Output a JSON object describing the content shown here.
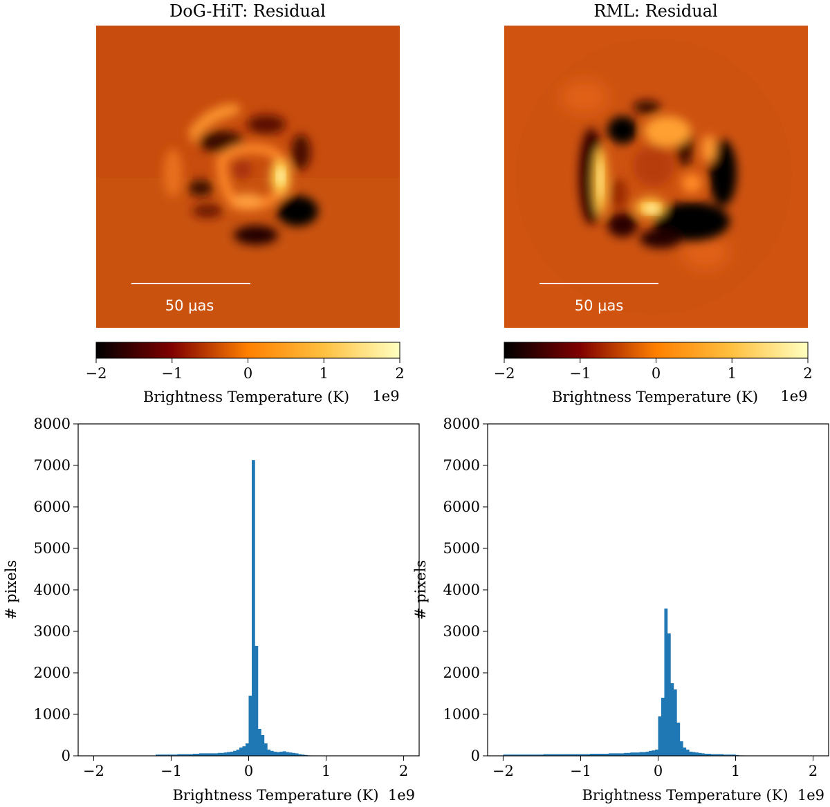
{
  "colors": {
    "bar": "#1f77b4",
    "frame": "#000000",
    "background": "#c64b0f",
    "scalebar": "#ffffff"
  },
  "chart_data": [
    {
      "type": "heatmap",
      "title": "DoG-HiT: Residual",
      "colormap": "afmhot",
      "scalebar_label": "50 μas",
      "colorbar": {
        "label": "Brightness Temperature (K)",
        "offset_label": "1e9",
        "range": [
          -2,
          2
        ],
        "ticks": [
          -2,
          -1,
          0,
          1,
          2
        ],
        "tick_labels": [
          "−2",
          "−1",
          "0",
          "1",
          "2"
        ]
      }
    },
    {
      "type": "heatmap",
      "title": "RML: Residual",
      "colormap": "afmhot",
      "scalebar_label": "50 μas",
      "colorbar": {
        "label": "Brightness Temperature (K)",
        "offset_label": "1e9",
        "range": [
          -2,
          2
        ],
        "ticks": [
          -2,
          -1,
          0,
          1,
          2
        ],
        "tick_labels": [
          "−2",
          "−1",
          "0",
          "1",
          "2"
        ]
      }
    },
    {
      "type": "bar",
      "subtype": "histogram",
      "xlabel": "Brightness Temperature (K)",
      "ylabel": "# pixels",
      "x_offset_label": "1e9",
      "xlim": [
        -2.2,
        2.2
      ],
      "ylim": [
        0,
        8000
      ],
      "xticks": [
        -2,
        -1,
        0,
        1,
        2
      ],
      "xtick_labels": [
        "−2",
        "−1",
        "0",
        "1",
        "2"
      ],
      "yticks": [
        0,
        1000,
        2000,
        3000,
        4000,
        5000,
        6000,
        7000,
        8000
      ],
      "ytick_labels": [
        "0",
        "1000",
        "2000",
        "3000",
        "4000",
        "5000",
        "6000",
        "7000",
        "8000"
      ],
      "bin_width": 0.04,
      "bin_start": -1.2,
      "values": [
        30,
        30,
        30,
        30,
        30,
        30,
        30,
        40,
        40,
        40,
        40,
        40,
        50,
        50,
        60,
        60,
        60,
        60,
        60,
        60,
        70,
        70,
        80,
        90,
        100,
        120,
        150,
        200,
        230,
        300,
        1450,
        7130,
        2650,
        650,
        500,
        300,
        150,
        120,
        100,
        90,
        100,
        110,
        90,
        80,
        70,
        60,
        40,
        30,
        20,
        10,
        5
      ]
    },
    {
      "type": "bar",
      "subtype": "histogram",
      "xlabel": "Brightness Temperature (K)",
      "ylabel": "# pixels",
      "x_offset_label": "1e9",
      "xlim": [
        -2.2,
        2.2
      ],
      "ylim": [
        0,
        8000
      ],
      "xticks": [
        -2,
        -1,
        0,
        1,
        2
      ],
      "xtick_labels": [
        "−2",
        "−1",
        "0",
        "1",
        "2"
      ],
      "yticks": [
        0,
        1000,
        2000,
        3000,
        4000,
        5000,
        6000,
        7000,
        8000
      ],
      "ytick_labels": [
        "0",
        "1000",
        "2000",
        "3000",
        "4000",
        "5000",
        "6000",
        "7000",
        "8000"
      ],
      "bin_width": 0.04,
      "bin_start": -2.0,
      "values": [
        30,
        30,
        30,
        30,
        30,
        30,
        30,
        30,
        30,
        30,
        30,
        30,
        30,
        40,
        40,
        40,
        40,
        40,
        40,
        40,
        40,
        40,
        40,
        40,
        40,
        40,
        40,
        40,
        50,
        50,
        50,
        50,
        50,
        50,
        60,
        60,
        60,
        60,
        60,
        70,
        70,
        80,
        80,
        80,
        90,
        90,
        100,
        120,
        130,
        150,
        950,
        1400,
        3550,
        2950,
        1750,
        1600,
        800,
        350,
        200,
        150,
        100,
        90,
        80,
        70,
        60,
        50,
        50,
        40,
        40,
        40,
        40,
        30,
        30,
        30,
        30,
        20,
        10,
        10
      ]
    }
  ]
}
